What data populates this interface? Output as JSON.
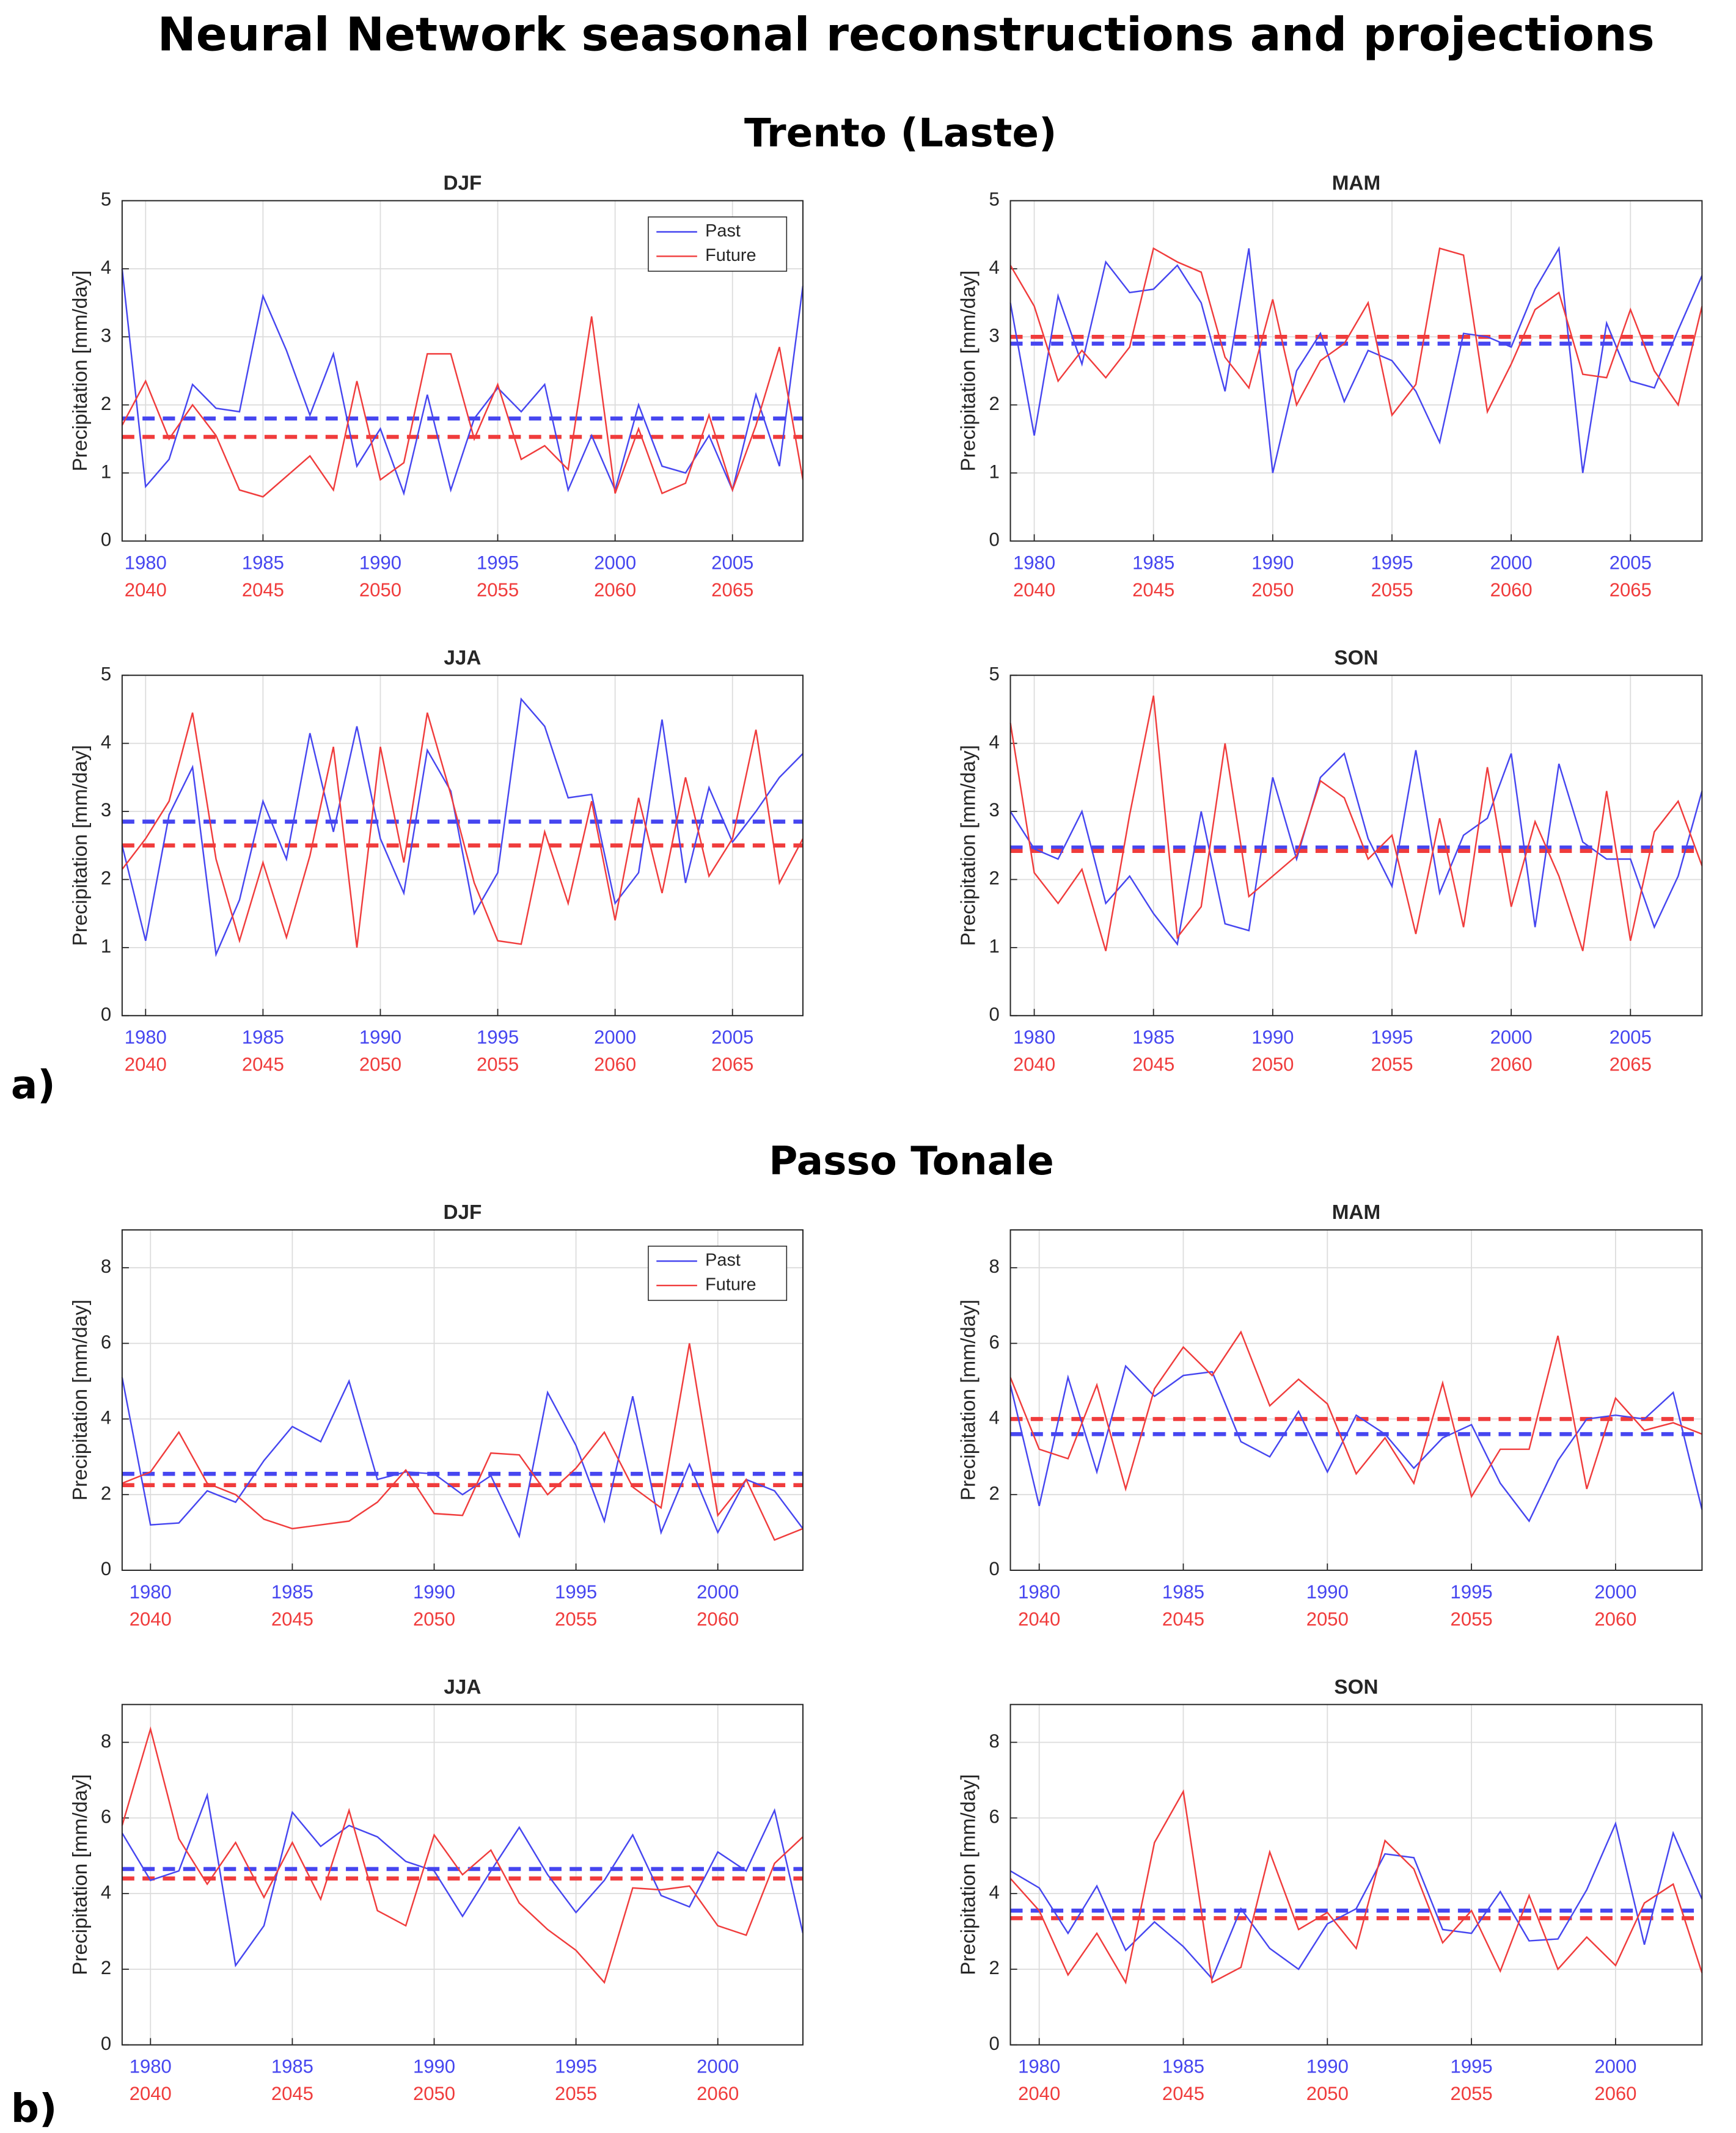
{
  "title": "Neural Network seasonal reconstructions and projections",
  "sections": [
    {
      "title": "Trento (Laste)",
      "label": "a)"
    },
    {
      "title": "Passo Tonale",
      "label": "b)"
    }
  ],
  "chart_data": [
    {
      "type": "line",
      "title": "DJF",
      "y_label": "Precipitation [mm/day]",
      "legend": "upper right",
      "grid": true,
      "x": [
        1979,
        1980,
        1981,
        1982,
        1983,
        1984,
        1985,
        1986,
        1987,
        1988,
        1989,
        1990,
        1991,
        1992,
        1993,
        1994,
        1995,
        1996,
        1997,
        1998,
        1999,
        2000,
        2001,
        2002,
        2003,
        2004,
        2005,
        2006,
        2007,
        2008
      ],
      "xlim": [
        1979,
        2008
      ],
      "ylim": [
        0,
        5
      ],
      "yticks": [
        0,
        1,
        2,
        3,
        4,
        5
      ],
      "xticks": [
        1980,
        1985,
        1990,
        1995,
        2000,
        2005
      ],
      "x2ticks": [
        {
          "value": 1980,
          "label": "2040"
        },
        {
          "value": 1985,
          "label": "2045"
        },
        {
          "value": 1990,
          "label": "2050"
        },
        {
          "value": 1995,
          "label": "2055"
        },
        {
          "value": 2000,
          "label": "2060"
        },
        {
          "value": 2005,
          "label": "2065"
        }
      ],
      "series": [
        {
          "name": "Past",
          "color": "#4646f0",
          "mean": 1.8,
          "values": [
            4.0,
            0.8,
            1.2,
            2.3,
            1.95,
            1.9,
            3.6,
            2.8,
            1.85,
            2.75,
            1.1,
            1.65,
            0.7,
            2.15,
            0.75,
            1.8,
            2.25,
            1.9,
            2.3,
            0.75,
            1.55,
            0.75,
            2.0,
            1.1,
            1.0,
            1.55,
            0.75,
            2.15,
            1.1,
            3.75
          ]
        },
        {
          "name": "Future",
          "color": "#f03c3c",
          "mean": 1.53,
          "values": [
            1.7,
            2.35,
            1.5,
            2.0,
            1.55,
            0.75,
            0.65,
            0.95,
            1.25,
            0.75,
            2.35,
            0.9,
            1.15,
            2.75,
            2.75,
            1.5,
            2.3,
            1.2,
            1.4,
            1.05,
            3.3,
            0.7,
            1.65,
            0.7,
            0.85,
            1.85,
            0.75,
            1.7,
            2.85,
            0.9
          ]
        }
      ]
    },
    {
      "type": "line",
      "title": "MAM",
      "y_label": "Precipitation [mm/day]",
      "grid": true,
      "x": [
        1979,
        1980,
        1981,
        1982,
        1983,
        1984,
        1985,
        1986,
        1987,
        1988,
        1989,
        1990,
        1991,
        1992,
        1993,
        1994,
        1995,
        1996,
        1997,
        1998,
        1999,
        2000,
        2001,
        2002,
        2003,
        2004,
        2005,
        2006,
        2007,
        2008
      ],
      "xlim": [
        1979,
        2008
      ],
      "ylim": [
        0,
        5
      ],
      "yticks": [
        0,
        1,
        2,
        3,
        4,
        5
      ],
      "xticks": [
        1980,
        1985,
        1990,
        1995,
        2000,
        2005
      ],
      "x2ticks": [
        {
          "value": 1980,
          "label": "2040"
        },
        {
          "value": 1985,
          "label": "2045"
        },
        {
          "value": 1990,
          "label": "2050"
        },
        {
          "value": 1995,
          "label": "2055"
        },
        {
          "value": 2000,
          "label": "2060"
        },
        {
          "value": 2005,
          "label": "2065"
        }
      ],
      "series": [
        {
          "color": "#4646f0",
          "mean": 2.9,
          "values": [
            3.5,
            1.55,
            3.6,
            2.6,
            4.1,
            3.65,
            3.7,
            4.05,
            3.5,
            2.2,
            4.3,
            1.0,
            2.5,
            3.05,
            2.05,
            2.8,
            2.65,
            2.2,
            1.45,
            3.05,
            3.0,
            2.85,
            3.7,
            4.3,
            1.0,
            3.2,
            2.35,
            2.25,
            3.1,
            3.9
          ]
        },
        {
          "color": "#f03c3c",
          "mean": 3.0,
          "values": [
            4.05,
            3.45,
            2.35,
            2.8,
            2.4,
            2.85,
            4.3,
            4.1,
            3.95,
            2.7,
            2.25,
            3.55,
            2.0,
            2.65,
            2.9,
            3.5,
            1.85,
            2.3,
            4.3,
            4.2,
            1.9,
            2.6,
            3.4,
            3.65,
            2.45,
            2.4,
            3.4,
            2.5,
            2.0,
            3.45
          ]
        }
      ]
    },
    {
      "type": "line",
      "title": "JJA",
      "y_label": "Precipitation [mm/day]",
      "grid": true,
      "x": [
        1979,
        1980,
        1981,
        1982,
        1983,
        1984,
        1985,
        1986,
        1987,
        1988,
        1989,
        1990,
        1991,
        1992,
        1993,
        1994,
        1995,
        1996,
        1997,
        1998,
        1999,
        2000,
        2001,
        2002,
        2003,
        2004,
        2005,
        2006,
        2007,
        2008
      ],
      "xlim": [
        1979,
        2008
      ],
      "ylim": [
        0,
        5
      ],
      "yticks": [
        0,
        1,
        2,
        3,
        4,
        5
      ],
      "xticks": [
        1980,
        1985,
        1990,
        1995,
        2000,
        2005
      ],
      "x2ticks": [
        {
          "value": 1980,
          "label": "2040"
        },
        {
          "value": 1985,
          "label": "2045"
        },
        {
          "value": 1990,
          "label": "2050"
        },
        {
          "value": 1995,
          "label": "2055"
        },
        {
          "value": 2000,
          "label": "2060"
        },
        {
          "value": 2005,
          "label": "2065"
        }
      ],
      "series": [
        {
          "color": "#4646f0",
          "mean": 2.85,
          "values": [
            2.5,
            1.1,
            2.95,
            3.65,
            0.9,
            1.7,
            3.15,
            2.3,
            4.15,
            2.7,
            4.25,
            2.6,
            1.8,
            3.9,
            3.3,
            1.5,
            2.1,
            4.65,
            4.25,
            3.2,
            3.25,
            1.65,
            2.1,
            4.35,
            1.95,
            3.35,
            2.55,
            3.0,
            3.5,
            3.85
          ]
        },
        {
          "color": "#f03c3c",
          "mean": 2.5,
          "values": [
            2.15,
            2.6,
            3.15,
            4.45,
            2.3,
            1.1,
            2.25,
            1.15,
            2.35,
            3.95,
            1.0,
            3.95,
            2.25,
            4.45,
            3.25,
            1.95,
            1.1,
            1.05,
            2.7,
            1.65,
            3.15,
            1.4,
            3.2,
            1.8,
            3.5,
            2.05,
            2.6,
            4.2,
            1.95,
            2.6
          ]
        }
      ]
    },
    {
      "type": "line",
      "title": "SON",
      "y_label": "Precipitation [mm/day]",
      "grid": true,
      "x": [
        1979,
        1980,
        1981,
        1982,
        1983,
        1984,
        1985,
        1986,
        1987,
        1988,
        1989,
        1990,
        1991,
        1992,
        1993,
        1994,
        1995,
        1996,
        1997,
        1998,
        1999,
        2000,
        2001,
        2002,
        2003,
        2004,
        2005,
        2006,
        2007,
        2008
      ],
      "xlim": [
        1979,
        2008
      ],
      "ylim": [
        0,
        5
      ],
      "yticks": [
        0,
        1,
        2,
        3,
        4,
        5
      ],
      "xticks": [
        1980,
        1985,
        1990,
        1995,
        2000,
        2005
      ],
      "x2ticks": [
        {
          "value": 1980,
          "label": "2040"
        },
        {
          "value": 1985,
          "label": "2045"
        },
        {
          "value": 1990,
          "label": "2050"
        },
        {
          "value": 1995,
          "label": "2055"
        },
        {
          "value": 2000,
          "label": "2060"
        },
        {
          "value": 2005,
          "label": "2065"
        }
      ],
      "series": [
        {
          "color": "#4646f0",
          "mean": 2.47,
          "values": [
            3.0,
            2.45,
            2.3,
            3.0,
            1.65,
            2.05,
            1.5,
            1.05,
            3.0,
            1.35,
            1.25,
            3.5,
            2.3,
            3.5,
            3.85,
            2.6,
            1.9,
            3.9,
            1.8,
            2.65,
            2.9,
            3.85,
            1.3,
            3.7,
            2.55,
            2.3,
            2.3,
            1.3,
            2.05,
            3.3
          ]
        },
        {
          "color": "#f03c3c",
          "mean": 2.42,
          "values": [
            4.3,
            2.1,
            1.65,
            2.15,
            0.95,
            2.95,
            4.7,
            1.15,
            1.6,
            4.0,
            1.75,
            2.05,
            2.35,
            3.45,
            3.2,
            2.3,
            2.65,
            1.2,
            2.9,
            1.3,
            3.65,
            1.6,
            2.85,
            2.05,
            0.95,
            3.3,
            1.1,
            2.7,
            3.15,
            2.2
          ]
        }
      ]
    },
    {
      "type": "line",
      "title": "DJF",
      "y_label": "Precipitation [mm/day]",
      "legend": "upper right",
      "grid": true,
      "x": [
        1979,
        1980,
        1981,
        1982,
        1983,
        1984,
        1985,
        1986,
        1987,
        1988,
        1989,
        1990,
        1991,
        1992,
        1993,
        1994,
        1995,
        1996,
        1997,
        1998,
        1999,
        2000,
        2001,
        2002,
        2003
      ],
      "xlim": [
        1979,
        2003
      ],
      "ylim": [
        0,
        9
      ],
      "yticks": [
        0,
        2,
        4,
        6,
        8
      ],
      "xticks": [
        1980,
        1985,
        1990,
        1995,
        2000
      ],
      "x2ticks": [
        {
          "value": 1980,
          "label": "2040"
        },
        {
          "value": 1985,
          "label": "2045"
        },
        {
          "value": 1990,
          "label": "2050"
        },
        {
          "value": 1995,
          "label": "2055"
        },
        {
          "value": 2000,
          "label": "2060"
        }
      ],
      "series": [
        {
          "name": "Past",
          "color": "#4646f0",
          "mean": 2.55,
          "values": [
            5.1,
            1.2,
            1.25,
            2.1,
            1.8,
            2.9,
            3.8,
            3.4,
            5.0,
            2.4,
            2.6,
            2.55,
            2.0,
            2.5,
            0.9,
            4.7,
            3.3,
            1.3,
            4.6,
            1.0,
            2.8,
            1.0,
            2.4,
            2.1,
            1.1
          ]
        },
        {
          "name": "Future",
          "color": "#f03c3c",
          "mean": 2.25,
          "values": [
            2.3,
            2.6,
            3.65,
            2.3,
            2.0,
            1.35,
            1.1,
            1.2,
            1.3,
            1.8,
            2.65,
            1.5,
            1.45,
            3.1,
            3.05,
            2.0,
            2.7,
            3.65,
            2.2,
            1.65,
            6.0,
            1.45,
            2.4,
            0.8,
            1.1
          ]
        }
      ]
    },
    {
      "type": "line",
      "title": "MAM",
      "y_label": "Precipitation [mm/day]",
      "grid": true,
      "x": [
        1979,
        1980,
        1981,
        1982,
        1983,
        1984,
        1985,
        1986,
        1987,
        1988,
        1989,
        1990,
        1991,
        1992,
        1993,
        1994,
        1995,
        1996,
        1997,
        1998,
        1999,
        2000,
        2001,
        2002,
        2003
      ],
      "xlim": [
        1979,
        2003
      ],
      "ylim": [
        0,
        9
      ],
      "yticks": [
        0,
        2,
        4,
        6,
        8
      ],
      "xticks": [
        1980,
        1985,
        1990,
        1995,
        2000
      ],
      "x2ticks": [
        {
          "value": 1980,
          "label": "2040"
        },
        {
          "value": 1985,
          "label": "2045"
        },
        {
          "value": 1990,
          "label": "2050"
        },
        {
          "value": 1995,
          "label": "2055"
        },
        {
          "value": 2000,
          "label": "2060"
        }
      ],
      "series": [
        {
          "color": "#4646f0",
          "mean": 3.6,
          "values": [
            4.9,
            1.7,
            5.1,
            2.6,
            5.4,
            4.6,
            5.15,
            5.25,
            3.4,
            3.0,
            4.2,
            2.6,
            4.1,
            3.6,
            2.7,
            3.5,
            3.85,
            2.3,
            1.3,
            2.9,
            4.0,
            4.1,
            4.0,
            4.7,
            1.6
          ]
        },
        {
          "color": "#f03c3c",
          "mean": 4.0,
          "values": [
            5.1,
            3.2,
            2.95,
            4.9,
            2.15,
            4.8,
            5.9,
            5.15,
            6.3,
            4.35,
            5.05,
            4.4,
            2.55,
            3.5,
            2.3,
            4.95,
            1.95,
            3.2,
            3.2,
            6.2,
            2.15,
            4.55,
            3.7,
            3.9,
            3.6
          ]
        }
      ]
    },
    {
      "type": "line",
      "title": "JJA",
      "y_label": "Precipitation [mm/day]",
      "grid": true,
      "x": [
        1979,
        1980,
        1981,
        1982,
        1983,
        1984,
        1985,
        1986,
        1987,
        1988,
        1989,
        1990,
        1991,
        1992,
        1993,
        1994,
        1995,
        1996,
        1997,
        1998,
        1999,
        2000,
        2001,
        2002,
        2003
      ],
      "xlim": [
        1979,
        2003
      ],
      "ylim": [
        0,
        9
      ],
      "yticks": [
        0,
        2,
        4,
        6,
        8
      ],
      "xticks": [
        1980,
        1985,
        1990,
        1995,
        2000
      ],
      "x2ticks": [
        {
          "value": 1980,
          "label": "2040"
        },
        {
          "value": 1985,
          "label": "2045"
        },
        {
          "value": 1990,
          "label": "2050"
        },
        {
          "value": 1995,
          "label": "2055"
        },
        {
          "value": 2000,
          "label": "2060"
        }
      ],
      "series": [
        {
          "color": "#4646f0",
          "mean": 4.65,
          "values": [
            5.6,
            4.35,
            4.6,
            6.6,
            2.1,
            3.15,
            6.15,
            5.25,
            5.8,
            5.5,
            4.85,
            4.6,
            3.4,
            4.6,
            5.75,
            4.5,
            3.5,
            4.35,
            5.55,
            3.95,
            3.65,
            5.1,
            4.6,
            6.2,
            2.95
          ]
        },
        {
          "color": "#f03c3c",
          "mean": 4.4,
          "values": [
            5.8,
            8.35,
            5.45,
            4.25,
            5.35,
            3.9,
            5.35,
            3.85,
            6.2,
            3.55,
            3.15,
            5.55,
            4.5,
            5.15,
            3.75,
            3.05,
            2.5,
            1.65,
            4.15,
            4.1,
            4.2,
            3.15,
            2.9,
            4.8,
            5.5
          ]
        }
      ]
    },
    {
      "type": "line",
      "title": "SON",
      "y_label": "Precipitation [mm/day]",
      "grid": true,
      "x": [
        1979,
        1980,
        1981,
        1982,
        1983,
        1984,
        1985,
        1986,
        1987,
        1988,
        1989,
        1990,
        1991,
        1992,
        1993,
        1994,
        1995,
        1996,
        1997,
        1998,
        1999,
        2000,
        2001,
        2002,
        2003
      ],
      "xlim": [
        1979,
        2003
      ],
      "ylim": [
        0,
        9
      ],
      "yticks": [
        0,
        2,
        4,
        6,
        8
      ],
      "xticks": [
        1980,
        1985,
        1990,
        1995,
        2000
      ],
      "x2ticks": [
        {
          "value": 1980,
          "label": "2040"
        },
        {
          "value": 1985,
          "label": "2045"
        },
        {
          "value": 1990,
          "label": "2050"
        },
        {
          "value": 1995,
          "label": "2055"
        },
        {
          "value": 2000,
          "label": "2060"
        }
      ],
      "series": [
        {
          "color": "#4646f0",
          "mean": 3.55,
          "values": [
            4.6,
            4.15,
            2.95,
            4.2,
            2.5,
            3.25,
            2.6,
            1.75,
            3.6,
            2.55,
            2.0,
            3.2,
            3.6,
            5.05,
            4.95,
            3.05,
            2.95,
            4.05,
            2.75,
            2.8,
            4.1,
            5.85,
            2.65,
            5.6,
            3.85
          ]
        },
        {
          "color": "#f03c3c",
          "mean": 3.35,
          "values": [
            4.4,
            3.55,
            1.85,
            2.95,
            1.65,
            5.35,
            6.7,
            1.65,
            2.05,
            5.1,
            3.05,
            3.5,
            2.55,
            5.4,
            4.65,
            2.7,
            3.55,
            1.95,
            3.95,
            2.0,
            2.85,
            2.1,
            3.75,
            4.25,
            1.9
          ]
        }
      ]
    }
  ]
}
